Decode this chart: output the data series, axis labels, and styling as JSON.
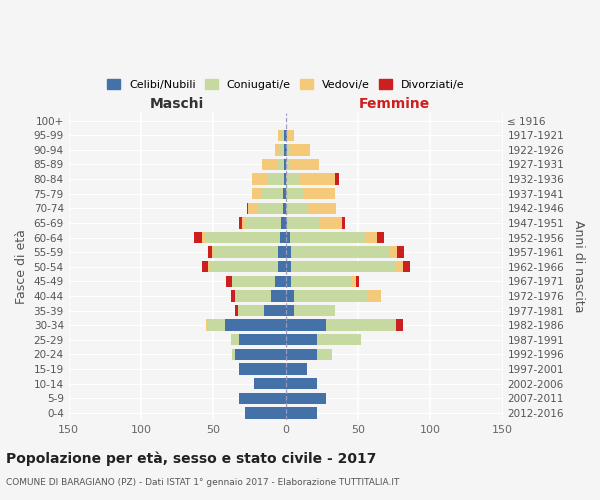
{
  "age_groups_bottom_to_top": [
    "0-4",
    "5-9",
    "10-14",
    "15-19",
    "20-24",
    "25-29",
    "30-34",
    "35-39",
    "40-44",
    "45-49",
    "50-54",
    "55-59",
    "60-64",
    "65-69",
    "70-74",
    "75-79",
    "80-84",
    "85-89",
    "90-94",
    "95-99",
    "100+"
  ],
  "birth_years_bottom_to_top": [
    "2012-2016",
    "2007-2011",
    "2002-2006",
    "1997-2001",
    "1992-1996",
    "1987-1991",
    "1982-1986",
    "1977-1981",
    "1972-1976",
    "1967-1971",
    "1962-1966",
    "1957-1961",
    "1952-1956",
    "1947-1951",
    "1942-1946",
    "1937-1941",
    "1932-1936",
    "1927-1931",
    "1922-1926",
    "1917-1921",
    "≤ 1916"
  ],
  "maschi": {
    "celibi": [
      28,
      32,
      22,
      32,
      35,
      32,
      42,
      15,
      10,
      7,
      5,
      5,
      4,
      3,
      2,
      2,
      1,
      1,
      1,
      1,
      0
    ],
    "coniugati": [
      0,
      0,
      0,
      0,
      2,
      5,
      12,
      18,
      25,
      30,
      48,
      45,
      52,
      25,
      18,
      15,
      12,
      5,
      3,
      2,
      0
    ],
    "vedovi": [
      0,
      0,
      0,
      0,
      0,
      1,
      1,
      0,
      0,
      0,
      1,
      1,
      2,
      2,
      6,
      6,
      10,
      10,
      3,
      2,
      0
    ],
    "divorziati": [
      0,
      0,
      0,
      0,
      0,
      0,
      0,
      2,
      3,
      4,
      4,
      3,
      5,
      2,
      1,
      0,
      0,
      0,
      0,
      0,
      0
    ]
  },
  "femmine": {
    "nubili": [
      22,
      28,
      22,
      15,
      22,
      22,
      28,
      6,
      6,
      4,
      4,
      4,
      3,
      1,
      0,
      0,
      0,
      0,
      1,
      1,
      0
    ],
    "coniugate": [
      0,
      0,
      0,
      0,
      10,
      30,
      48,
      28,
      50,
      42,
      72,
      68,
      52,
      22,
      15,
      12,
      10,
      3,
      2,
      0,
      0
    ],
    "vedove": [
      0,
      0,
      0,
      0,
      0,
      0,
      0,
      0,
      10,
      3,
      5,
      5,
      8,
      16,
      20,
      22,
      24,
      20,
      14,
      5,
      0
    ],
    "divorziate": [
      0,
      0,
      0,
      0,
      0,
      0,
      5,
      0,
      0,
      2,
      5,
      5,
      5,
      2,
      0,
      0,
      3,
      0,
      0,
      0,
      0
    ]
  },
  "colors": {
    "celibi": "#4472a8",
    "coniugati": "#c5d9a0",
    "vedovi": "#f5c97a",
    "divorziati": "#cc2020"
  },
  "xlim": 150,
  "title": "Popolazione per età, sesso e stato civile - 2017",
  "subtitle": "COMUNE DI BARAGIANO (PZ) - Dati ISTAT 1° gennaio 2017 - Elaborazione TUTTITALIA.IT",
  "xlabel_left": "Maschi",
  "xlabel_right": "Femmine",
  "ylabel_left": "Fasce di età",
  "ylabel_right": "Anni di nascita",
  "legend_labels": [
    "Celibi/Nubili",
    "Coniugati/e",
    "Vedovi/e",
    "Divorziati/e"
  ],
  "bg_color": "#f5f5f5",
  "grid_color": "#ffffff"
}
